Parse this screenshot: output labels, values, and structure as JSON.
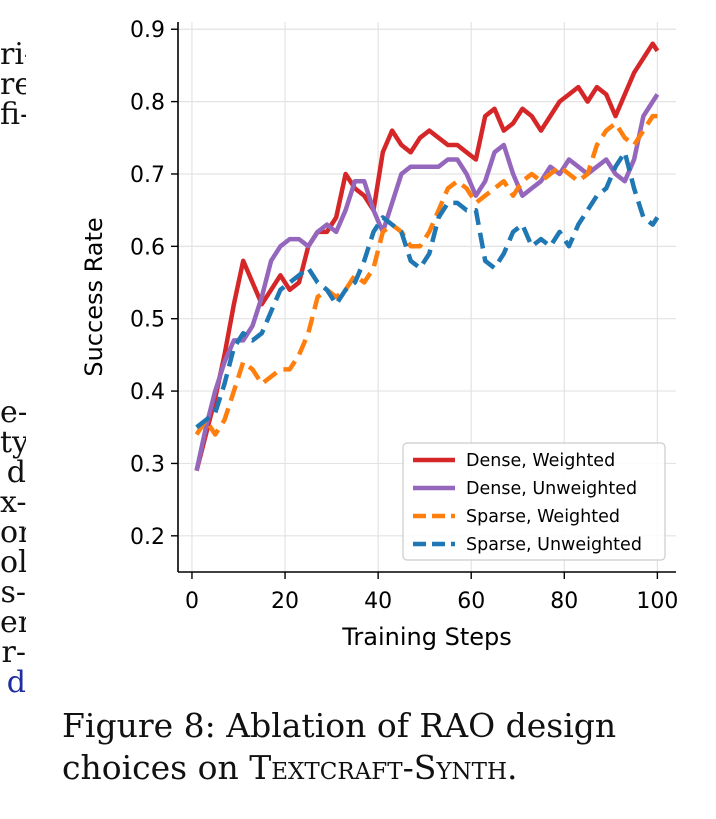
{
  "left_text_fragments": [
    "ri-",
    "re",
    "fi-",
    "e-",
    "ty",
    "d",
    "x-",
    "or",
    "ol",
    "s-",
    "er",
    "r-",
    "d"
  ],
  "caption": {
    "label": "Figure 8:",
    "text_before": "Ablation of RAO design choices on ",
    "name_a": "Textcraft",
    "separator": "-",
    "name_b": "Synth",
    "end": "."
  },
  "chart_data": {
    "type": "line",
    "xlabel": "Training Steps",
    "ylabel": "Success Rate",
    "xlim": [
      -3,
      104
    ],
    "ylim": [
      0.15,
      0.91
    ],
    "xticks": [
      0,
      20,
      40,
      60,
      80,
      100
    ],
    "yticks": [
      0.2,
      0.3,
      0.4,
      0.5,
      0.6,
      0.7,
      0.8,
      0.9
    ],
    "grid": true,
    "legend_position": "lower right",
    "series": [
      {
        "name": "Dense, Weighted",
        "color": "#d62728",
        "style": "solid",
        "x": [
          1,
          3,
          5,
          7,
          9,
          11,
          13,
          15,
          17,
          19,
          21,
          23,
          25,
          27,
          29,
          31,
          33,
          35,
          37,
          39,
          41,
          43,
          45,
          47,
          49,
          51,
          53,
          55,
          57,
          59,
          61,
          63,
          65,
          67,
          69,
          71,
          73,
          75,
          77,
          79,
          81,
          83,
          85,
          87,
          89,
          91,
          93,
          95,
          97,
          99,
          100
        ],
        "y": [
          0.29,
          0.34,
          0.39,
          0.45,
          0.52,
          0.58,
          0.55,
          0.52,
          0.54,
          0.56,
          0.54,
          0.55,
          0.6,
          0.62,
          0.62,
          0.64,
          0.7,
          0.68,
          0.67,
          0.65,
          0.73,
          0.76,
          0.74,
          0.73,
          0.75,
          0.76,
          0.75,
          0.74,
          0.74,
          0.73,
          0.72,
          0.78,
          0.79,
          0.76,
          0.77,
          0.79,
          0.78,
          0.76,
          0.78,
          0.8,
          0.81,
          0.82,
          0.8,
          0.82,
          0.81,
          0.78,
          0.81,
          0.84,
          0.86,
          0.88,
          0.87
        ]
      },
      {
        "name": "Dense, Unweighted",
        "color": "#9467bd",
        "style": "solid",
        "x": [
          1,
          3,
          5,
          7,
          9,
          11,
          13,
          15,
          17,
          19,
          21,
          23,
          25,
          27,
          29,
          31,
          33,
          35,
          37,
          39,
          41,
          43,
          45,
          47,
          49,
          51,
          53,
          55,
          57,
          59,
          61,
          63,
          65,
          67,
          69,
          71,
          73,
          75,
          77,
          79,
          81,
          83,
          85,
          87,
          89,
          91,
          93,
          95,
          97,
          99,
          100
        ],
        "y": [
          0.29,
          0.35,
          0.4,
          0.44,
          0.47,
          0.47,
          0.49,
          0.53,
          0.58,
          0.6,
          0.61,
          0.61,
          0.6,
          0.62,
          0.63,
          0.62,
          0.65,
          0.69,
          0.69,
          0.65,
          0.62,
          0.66,
          0.7,
          0.71,
          0.71,
          0.71,
          0.71,
          0.72,
          0.72,
          0.7,
          0.67,
          0.69,
          0.73,
          0.74,
          0.7,
          0.67,
          0.68,
          0.69,
          0.71,
          0.7,
          0.72,
          0.71,
          0.7,
          0.71,
          0.72,
          0.7,
          0.69,
          0.72,
          0.78,
          0.8,
          0.81
        ]
      },
      {
        "name": "Sparse, Weighted",
        "color": "#ff7f0e",
        "style": "dashed",
        "x": [
          1,
          3,
          5,
          7,
          9,
          11,
          13,
          15,
          17,
          19,
          21,
          23,
          25,
          27,
          29,
          31,
          33,
          35,
          37,
          39,
          41,
          43,
          45,
          47,
          49,
          51,
          53,
          55,
          57,
          59,
          61,
          63,
          65,
          67,
          69,
          71,
          73,
          75,
          77,
          79,
          81,
          83,
          85,
          87,
          89,
          91,
          93,
          95,
          97,
          99,
          100
        ],
        "y": [
          0.34,
          0.36,
          0.34,
          0.36,
          0.4,
          0.44,
          0.43,
          0.41,
          0.42,
          0.43,
          0.43,
          0.45,
          0.48,
          0.53,
          0.54,
          0.53,
          0.54,
          0.56,
          0.55,
          0.57,
          0.62,
          0.63,
          0.62,
          0.6,
          0.6,
          0.62,
          0.65,
          0.68,
          0.69,
          0.68,
          0.66,
          0.67,
          0.68,
          0.69,
          0.67,
          0.69,
          0.7,
          0.69,
          0.7,
          0.71,
          0.7,
          0.69,
          0.7,
          0.74,
          0.76,
          0.77,
          0.75,
          0.74,
          0.76,
          0.78,
          0.78
        ]
      },
      {
        "name": "Sparse, Unweighted",
        "color": "#1f77b4",
        "style": "dashed",
        "x": [
          1,
          3,
          5,
          7,
          9,
          11,
          13,
          15,
          17,
          19,
          21,
          23,
          25,
          27,
          29,
          31,
          33,
          35,
          37,
          39,
          41,
          43,
          45,
          47,
          49,
          51,
          53,
          55,
          57,
          59,
          61,
          63,
          65,
          67,
          69,
          71,
          73,
          75,
          77,
          79,
          81,
          83,
          85,
          87,
          89,
          91,
          93,
          95,
          97,
          99,
          100
        ],
        "y": [
          0.35,
          0.36,
          0.37,
          0.41,
          0.46,
          0.48,
          0.47,
          0.48,
          0.51,
          0.54,
          0.55,
          0.56,
          0.57,
          0.55,
          0.54,
          0.52,
          0.54,
          0.55,
          0.58,
          0.62,
          0.64,
          0.63,
          0.62,
          0.58,
          0.57,
          0.59,
          0.64,
          0.66,
          0.66,
          0.65,
          0.65,
          0.58,
          0.57,
          0.59,
          0.62,
          0.63,
          0.6,
          0.61,
          0.6,
          0.62,
          0.6,
          0.63,
          0.65,
          0.67,
          0.68,
          0.71,
          0.73,
          0.68,
          0.64,
          0.63,
          0.64
        ]
      }
    ]
  }
}
